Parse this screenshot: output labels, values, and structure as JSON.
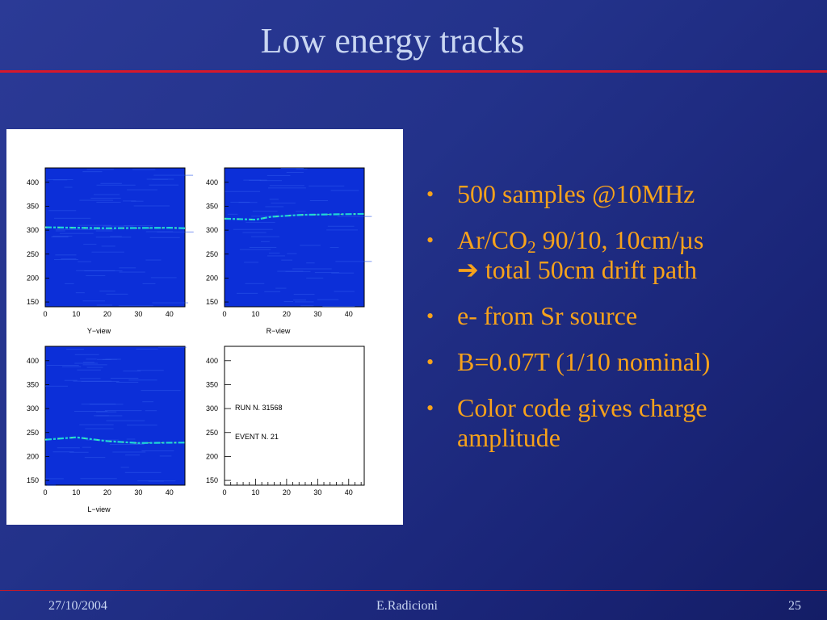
{
  "title": "Low energy tracks",
  "figure": {
    "panels": [
      {
        "key": "y",
        "name": "Y−view"
      },
      {
        "key": "r",
        "name": "R−view"
      },
      {
        "key": "l",
        "name": "L−view"
      },
      {
        "key": "blank",
        "name": ""
      }
    ],
    "y_ticks": [
      "400",
      "350",
      "300",
      "250",
      "200",
      "150"
    ],
    "x_ticks": [
      "0",
      "10",
      "20",
      "30",
      "40"
    ],
    "run_label": "RUN   N. 31568",
    "event_label": "EVENT N. 21",
    "colors": {
      "panel_bg": "#0c2fd8",
      "track": "#1fd6d6",
      "track_hot": "#7ff07f"
    }
  },
  "bullets": [
    {
      "parts": [
        {
          "t": "500 samples @10MHz"
        }
      ]
    },
    {
      "parts": [
        {
          "t": "Ar/CO"
        },
        {
          "t": "2",
          "sub": true
        },
        {
          "t": " 90/10, 10cm/µs"
        },
        {
          "br": true
        },
        {
          "t": "➔ total 50cm drift path"
        }
      ]
    },
    {
      "parts": [
        {
          "t": "e- from Sr source"
        }
      ]
    },
    {
      "parts": [
        {
          "t": "B=0.07T (1/10 nominal)"
        }
      ]
    },
    {
      "parts": [
        {
          "t": "Color code gives charge amplitude"
        }
      ]
    }
  ],
  "footer": {
    "date": "27/10/2004",
    "author": "E.Radicioni",
    "page": "25"
  }
}
